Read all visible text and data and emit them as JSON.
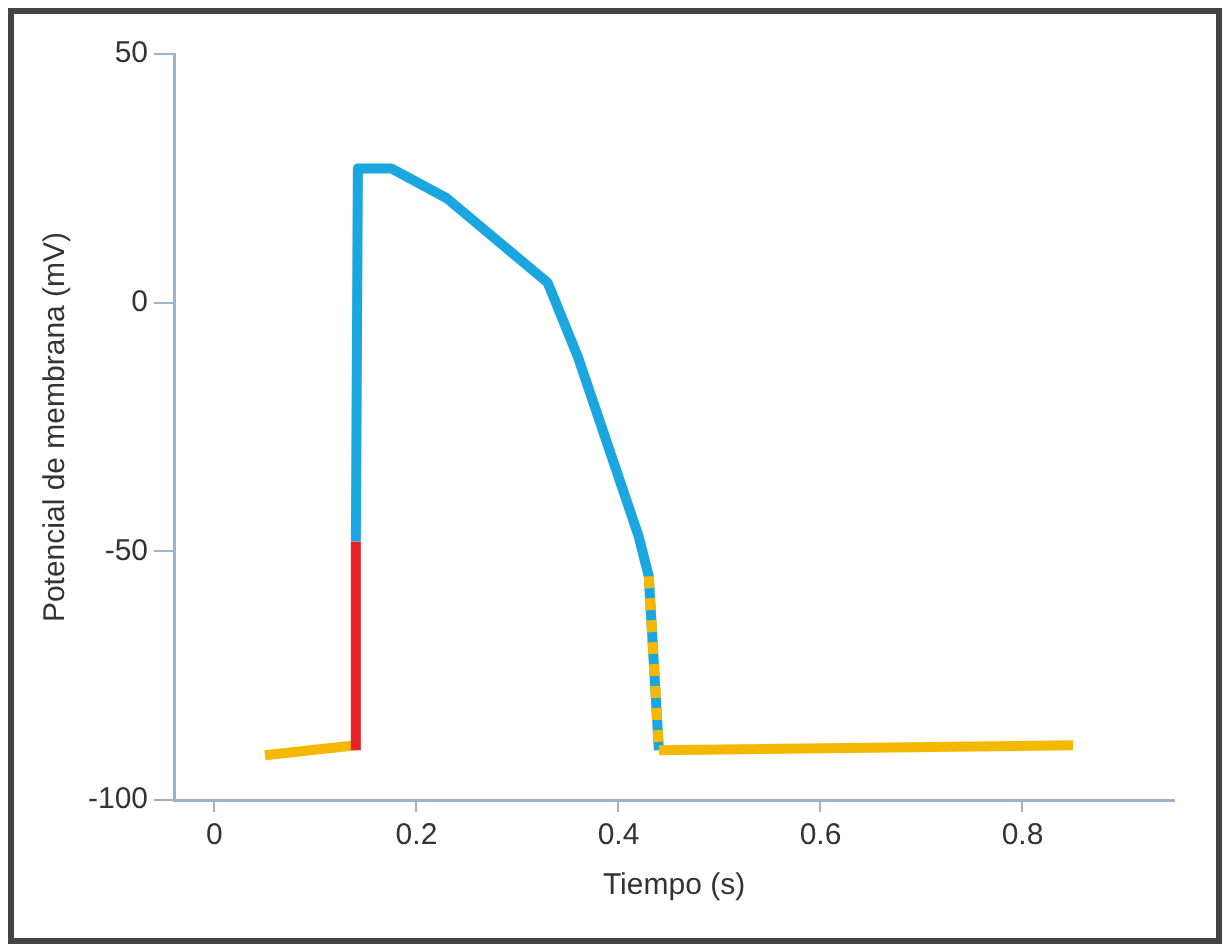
{
  "chart_data": {
    "type": "line",
    "xlabel": "Tiempo (s)",
    "ylabel": "Potencial de membrana (mV)",
    "xlim": [
      -0.04,
      0.95
    ],
    "xticks": [
      0,
      0.2,
      0.4,
      0.6,
      0.8
    ],
    "ylim": [
      -100,
      50
    ],
    "yticks": [
      -100,
      -50,
      0,
      50
    ],
    "grid": false,
    "legend": false,
    "marker": "none",
    "series": [
      {
        "color": "#f5b800",
        "x": [
          0.05,
          0.14
        ],
        "values": [
          -91,
          -89
        ]
      },
      {
        "color": "#e8202a",
        "x": [
          0.14,
          0.14
        ],
        "values": [
          -90,
          -48
        ]
      },
      {
        "color": "#1aa7e0",
        "x": [
          0.14,
          0.142,
          0.175,
          0.23,
          0.33,
          0.36,
          0.42,
          0.43,
          0.44
        ],
        "values": [
          -48,
          27,
          27,
          21,
          4,
          -11,
          -47,
          -55,
          -90
        ]
      },
      {
        "color": "#f5b800",
        "line_style": "dashed",
        "x": [
          0.43,
          0.44
        ],
        "values": [
          -55,
          -90
        ]
      },
      {
        "color": "#f5b800",
        "x": [
          0.44,
          0.85
        ],
        "values": [
          -90,
          -89
        ]
      }
    ]
  }
}
